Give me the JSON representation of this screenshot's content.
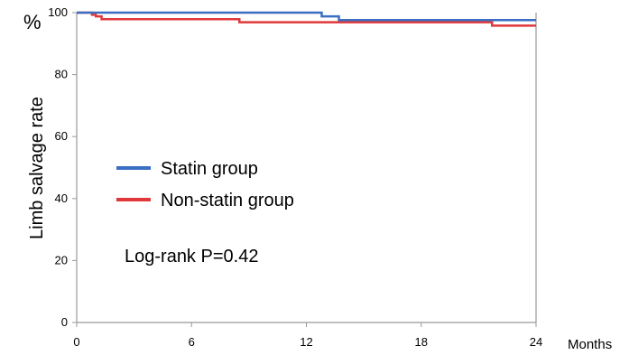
{
  "chart_data": {
    "type": "line",
    "chart_style": "step (Kaplan-Meier)",
    "ylabel": "Limb salvage rate",
    "yunit": "%",
    "xlabel": "Months",
    "xlim": [
      0,
      24
    ],
    "ylim": [
      0,
      100
    ],
    "xticks": [
      0,
      6,
      12,
      18,
      24
    ],
    "yticks": [
      0,
      20,
      40,
      60,
      80,
      100
    ],
    "grid": false,
    "legend_position": "left-center",
    "annotation": "Log-rank P=0.42",
    "series": [
      {
        "name": "Statin group",
        "color": "#3a6fc4",
        "points": [
          [
            0,
            100
          ],
          [
            12.8,
            100
          ],
          [
            12.8,
            98.8
          ],
          [
            13.7,
            98.8
          ],
          [
            13.7,
            97.6
          ],
          [
            24,
            97.6
          ]
        ]
      },
      {
        "name": "Non-statin group",
        "color": "#e0383a",
        "points": [
          [
            0,
            100
          ],
          [
            0.8,
            100
          ],
          [
            0.8,
            99.3
          ],
          [
            1.0,
            99.3
          ],
          [
            1.0,
            98.8
          ],
          [
            1.3,
            98.8
          ],
          [
            1.3,
            97.9
          ],
          [
            8.5,
            97.9
          ],
          [
            8.5,
            96.9
          ],
          [
            21.7,
            96.9
          ],
          [
            21.7,
            95.8
          ],
          [
            24,
            95.8
          ]
        ]
      }
    ]
  }
}
